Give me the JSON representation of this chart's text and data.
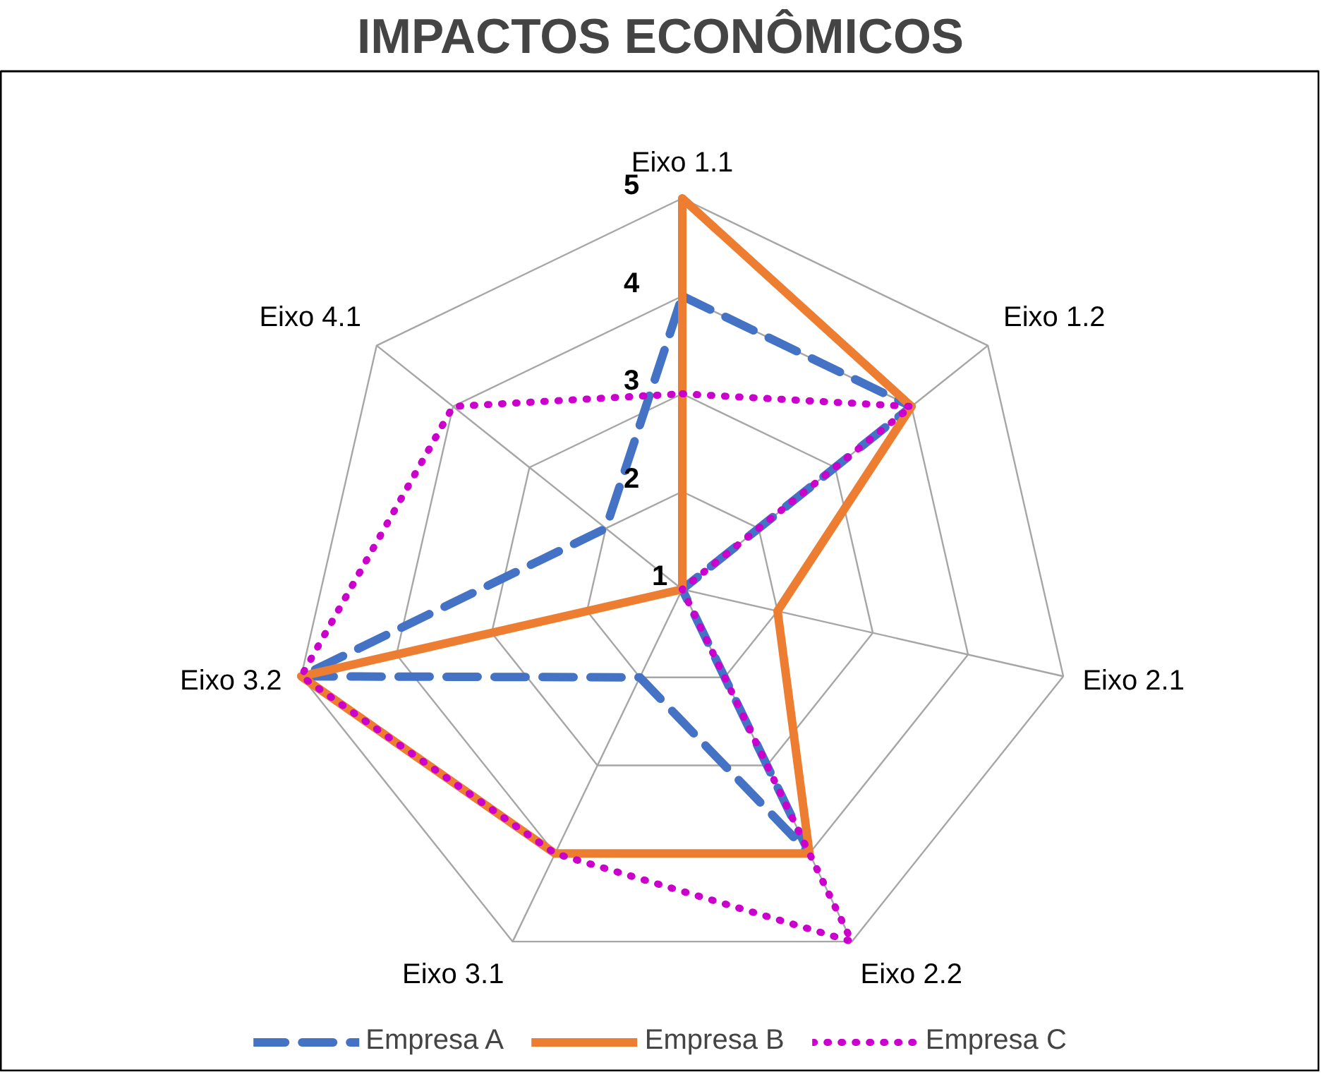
{
  "chart_data": {
    "type": "radar",
    "title": "IMPACTOS ECONÔMICOS",
    "categories": [
      "Eixo 1.1",
      "Eixo 1.2",
      "Eixo 2.1",
      "Eixo 2.2",
      "Eixo 3.1",
      "Eixo 3.2",
      "Eixo 4.1"
    ],
    "ylim": [
      1,
      5
    ],
    "yticks": [
      1,
      2,
      3,
      4,
      5
    ],
    "grid": true,
    "legend": "bottom",
    "series": [
      {
        "name": "Empresa A",
        "color": "#4472c4",
        "line_style": "dashed",
        "values": [
          4,
          4,
          1,
          4,
          2,
          5,
          2
        ]
      },
      {
        "name": "Empresa B",
        "color": "#ed7d31",
        "line_style": "solid",
        "values": [
          5,
          4,
          2,
          4,
          4,
          5,
          1
        ]
      },
      {
        "name": "Empresa C",
        "color": "#cc00cc",
        "line_style": "dotted",
        "values": [
          3,
          4,
          1,
          5,
          4,
          5,
          4
        ]
      }
    ]
  }
}
